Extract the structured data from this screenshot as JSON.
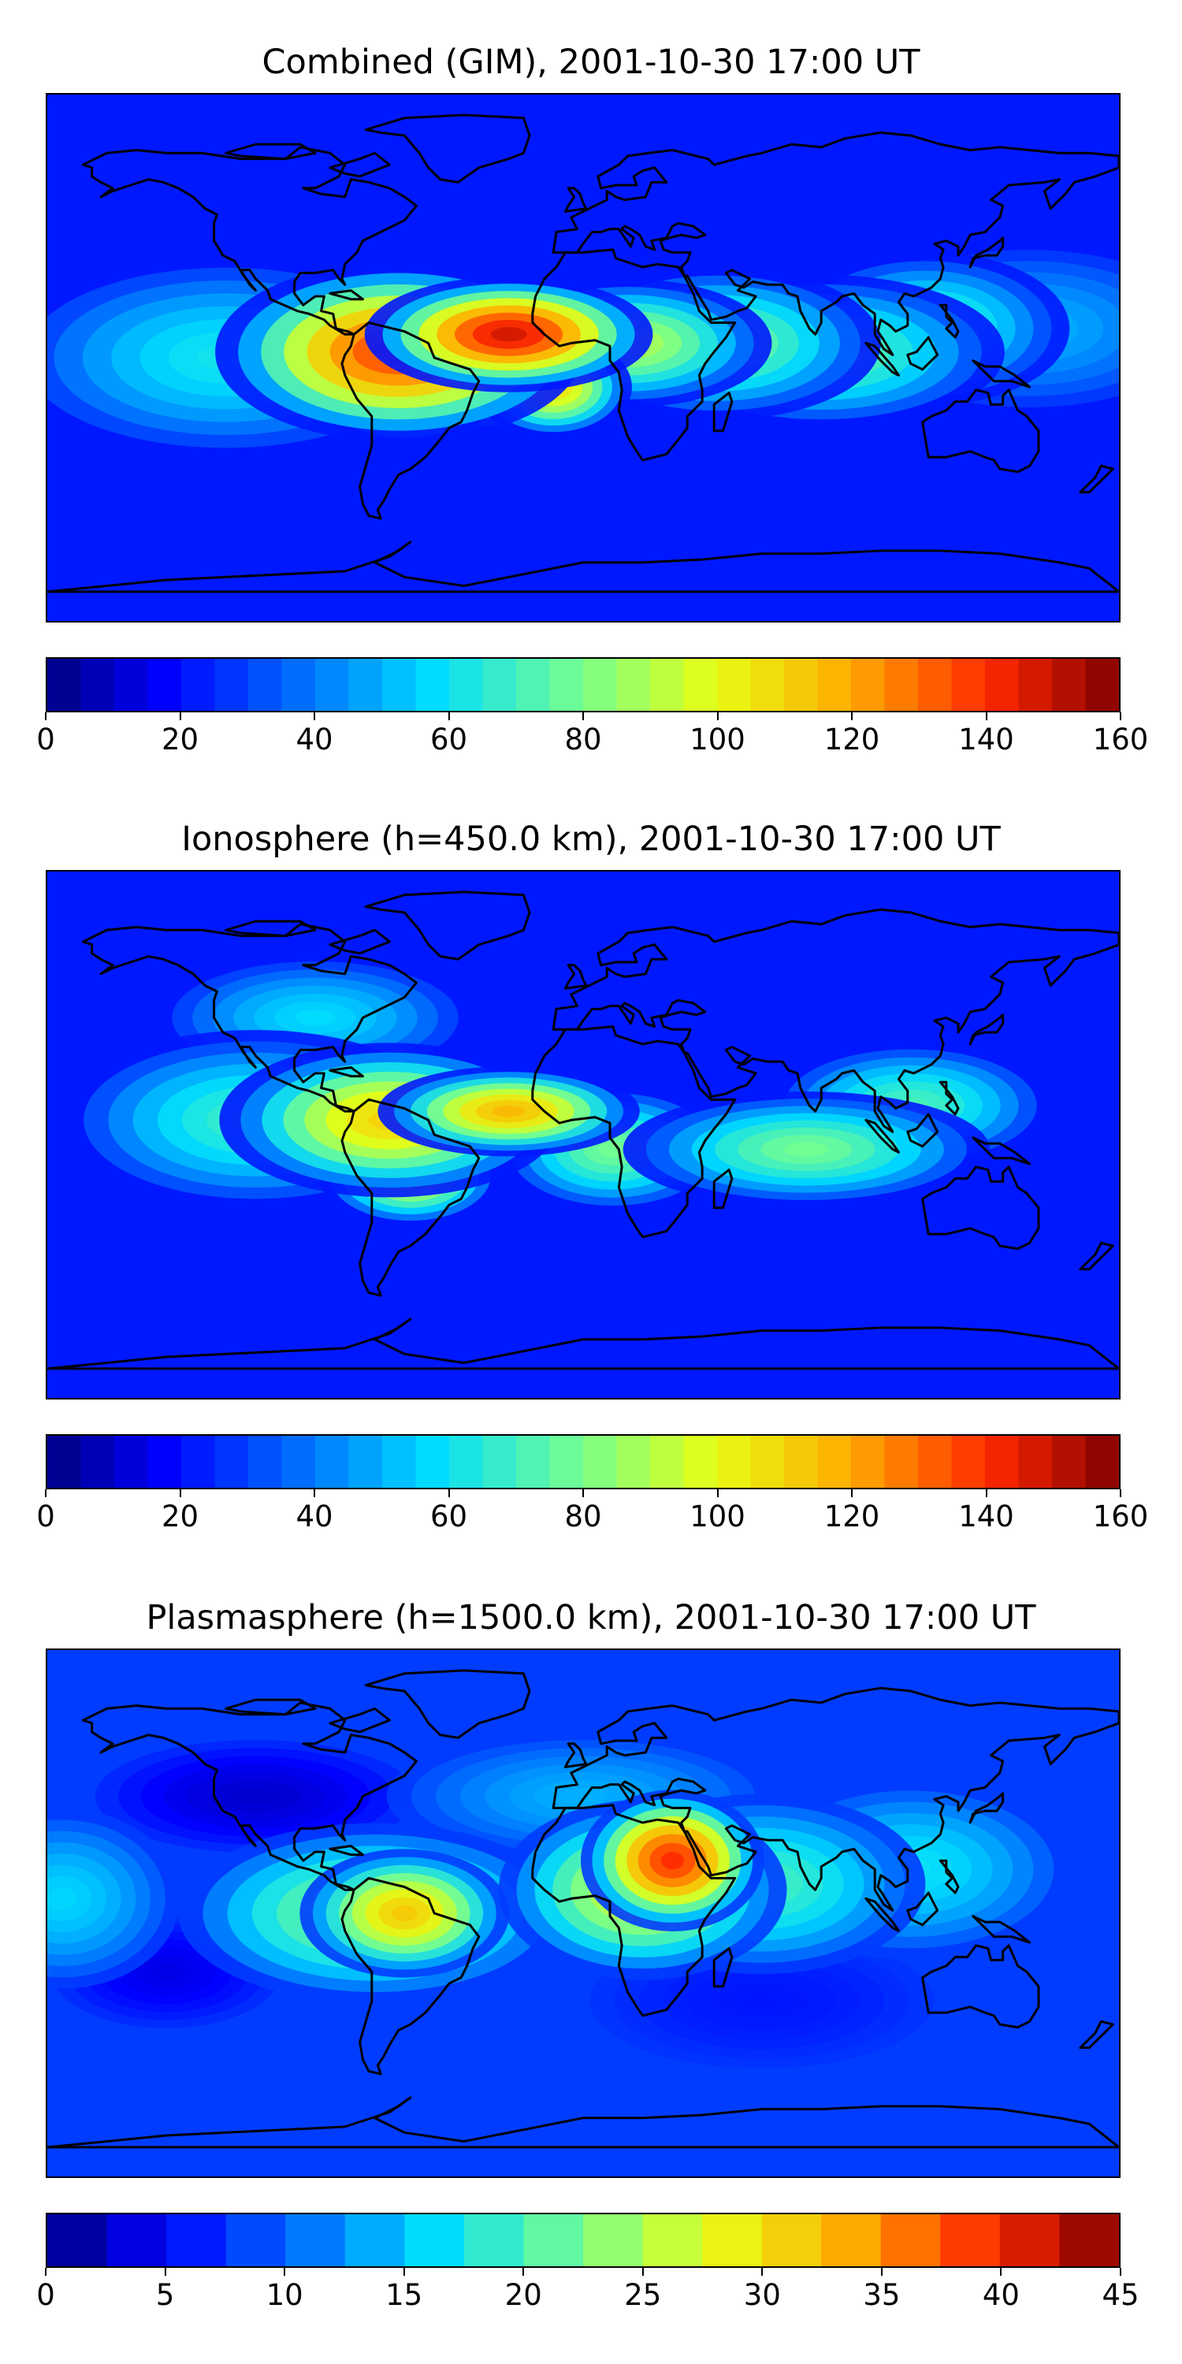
{
  "panels": [
    {
      "title": "Combined (GIM), 2001-10-30 17:00 UT",
      "colorbar": {
        "min": 0,
        "max": 160,
        "levels": 32,
        "ticks": [
          "0",
          "20",
          "40",
          "60",
          "80",
          "100",
          "120",
          "140",
          "160"
        ]
      },
      "blobs": [
        {
          "lon": -62,
          "lat": 2,
          "w": 28,
          "h": 14,
          "v": 140
        },
        {
          "lon": -25,
          "lat": 8,
          "w": 22,
          "h": 9,
          "v": 150
        },
        {
          "lon": -60,
          "lat": -12,
          "w": 14,
          "h": 8,
          "v": 115
        },
        {
          "lon": -35,
          "lat": -8,
          "w": 18,
          "h": 8,
          "v": 105
        },
        {
          "lon": -10,
          "lat": -10,
          "w": 12,
          "h": 8,
          "v": 110
        },
        {
          "lon": 15,
          "lat": 5,
          "w": 22,
          "h": 10,
          "v": 92
        },
        {
          "lon": 45,
          "lat": 5,
          "w": 25,
          "h": 12,
          "v": 82
        },
        {
          "lon": 80,
          "lat": 2,
          "w": 28,
          "h": 12,
          "v": 78
        },
        {
          "lon": 115,
          "lat": 10,
          "w": 22,
          "h": 12,
          "v": 72
        },
        {
          "lon": -120,
          "lat": 0,
          "w": 35,
          "h": 16,
          "v": 62
        },
        {
          "lon": 150,
          "lat": 10,
          "w": 30,
          "h": 14,
          "v": 50
        }
      ]
    },
    {
      "title": "Ionosphere  (h=450.0 km), 2001-10-30 17:00 UT",
      "colorbar": {
        "min": 0,
        "max": 160,
        "levels": 32,
        "ticks": [
          "0",
          "20",
          "40",
          "60",
          "80",
          "100",
          "120",
          "140",
          "160"
        ]
      },
      "blobs": [
        {
          "lon": -65,
          "lat": 5,
          "w": 26,
          "h": 12,
          "v": 112
        },
        {
          "lon": -25,
          "lat": 8,
          "w": 20,
          "h": 7,
          "v": 118
        },
        {
          "lon": -58,
          "lat": -14,
          "w": 14,
          "h": 8,
          "v": 102
        },
        {
          "lon": 10,
          "lat": -5,
          "w": 18,
          "h": 10,
          "v": 80
        },
        {
          "lon": 75,
          "lat": -5,
          "w": 28,
          "h": 9,
          "v": 80
        },
        {
          "lon": 110,
          "lat": 10,
          "w": 22,
          "h": 10,
          "v": 72
        },
        {
          "lon": -110,
          "lat": 5,
          "w": 30,
          "h": 14,
          "v": 70
        },
        {
          "lon": -90,
          "lat": 40,
          "w": 25,
          "h": 10,
          "v": 58
        }
      ]
    },
    {
      "title": "Plasmasphere (h=1500.0 km), 2001-10-30 17:00 UT",
      "colorbar": {
        "min": 0,
        "max": 45,
        "levels": 18,
        "ticks": [
          "0",
          "5",
          "10",
          "15",
          "20",
          "25",
          "30",
          "35",
          "40",
          "45"
        ]
      },
      "blobs": [
        {
          "lon": 30,
          "lat": 18,
          "w": 14,
          "h": 11,
          "v": 40
        },
        {
          "lon": 20,
          "lat": 8,
          "w": 22,
          "h": 14,
          "v": 28
        },
        {
          "lon": -60,
          "lat": 0,
          "w": 16,
          "h": 10,
          "v": 32
        },
        {
          "lon": -70,
          "lat": 0,
          "w": 30,
          "h": 14,
          "v": 24
        },
        {
          "lon": 60,
          "lat": 10,
          "w": 25,
          "h": 14,
          "v": 20
        },
        {
          "lon": 110,
          "lat": 15,
          "w": 25,
          "h": 14,
          "v": 17
        },
        {
          "lon": -175,
          "lat": 5,
          "w": 18,
          "h": 14,
          "v": 16
        },
        {
          "lon": 0,
          "lat": 40,
          "w": 30,
          "h": 10,
          "v": 14
        },
        {
          "lon": -110,
          "lat": 40,
          "w": 28,
          "h": 10,
          "v": 3
        },
        {
          "lon": -140,
          "lat": -20,
          "w": 20,
          "h": 10,
          "v": 4
        },
        {
          "lon": 60,
          "lat": -30,
          "w": 30,
          "h": 12,
          "v": 6
        }
      ]
    }
  ]
}
